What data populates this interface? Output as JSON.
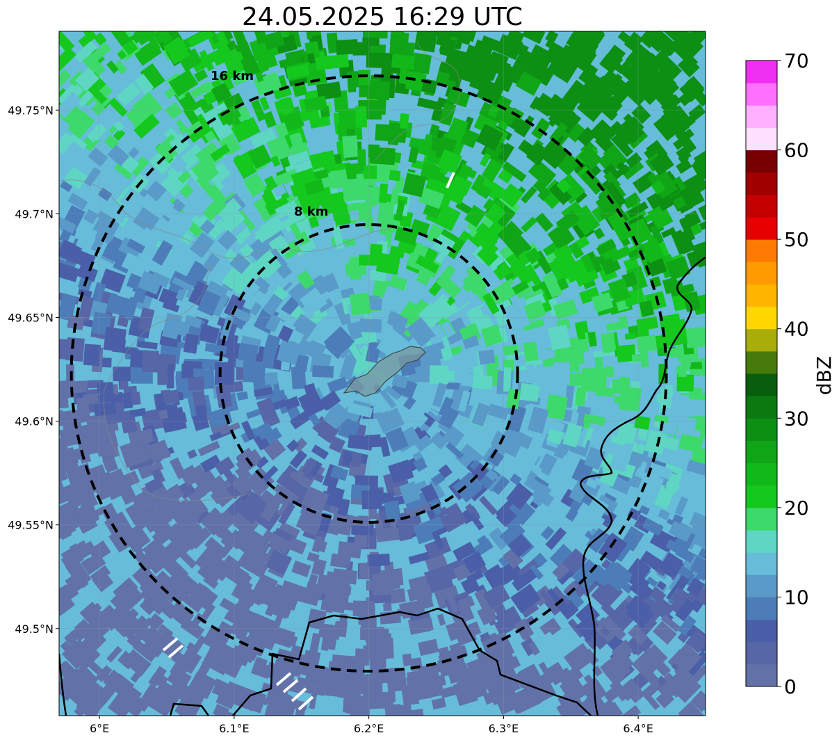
{
  "title": "24.05.2025 16:29 UTC",
  "map": {
    "lon_range": [
      5.97,
      6.45
    ],
    "lat_range": [
      49.458,
      49.788
    ],
    "center": {
      "lon": 6.2,
      "lat": 49.623
    },
    "x_ticks": [
      {
        "value": 6.0,
        "label": "6°E"
      },
      {
        "value": 6.1,
        "label": "6.1°E"
      },
      {
        "value": 6.2,
        "label": "6.2°E"
      },
      {
        "value": 6.3,
        "label": "6.3°E"
      },
      {
        "value": 6.4,
        "label": "6.4°E"
      }
    ],
    "y_ticks": [
      {
        "value": 49.5,
        "label": "49.5°N"
      },
      {
        "value": 49.55,
        "label": "49.55°N"
      },
      {
        "value": 49.6,
        "label": "49.6°N"
      },
      {
        "value": 49.65,
        "label": "49.65°N"
      },
      {
        "value": 49.7,
        "label": "49.7°N"
      },
      {
        "value": 49.75,
        "label": "49.75°N"
      }
    ],
    "range_rings": [
      {
        "radius_km": 16,
        "label": "16 km"
      },
      {
        "radius_km": 8,
        "label": "8 km"
      }
    ]
  },
  "colorbar": {
    "label": "dBZ",
    "min": 0,
    "max": 70,
    "step": 2.5,
    "ticks": [
      {
        "value": 0,
        "label": "0"
      },
      {
        "value": 10,
        "label": "10"
      },
      {
        "value": 20,
        "label": "20"
      },
      {
        "value": 30,
        "label": "30"
      },
      {
        "value": 40,
        "label": "40"
      },
      {
        "value": 50,
        "label": "50"
      },
      {
        "value": 60,
        "label": "60"
      },
      {
        "value": 70,
        "label": "70"
      }
    ],
    "colors": [
      "#6272a8",
      "#5766a6",
      "#4a5fa8",
      "#4d7db8",
      "#5a9ac8",
      "#66bcd9",
      "#5ed6c3",
      "#3dd96b",
      "#14c81e",
      "#12b81a",
      "#10a516",
      "#0c8f12",
      "#0a7a10",
      "#085e0c",
      "#467a0b",
      "#a8ad0a",
      "#ffd700",
      "#ffb400",
      "#ff9a00",
      "#ff7a00",
      "#e60000",
      "#c40000",
      "#a00000",
      "#780000",
      "#ffe0ff",
      "#ffb0ff",
      "#ff70ff",
      "#f030f0"
    ]
  }
}
